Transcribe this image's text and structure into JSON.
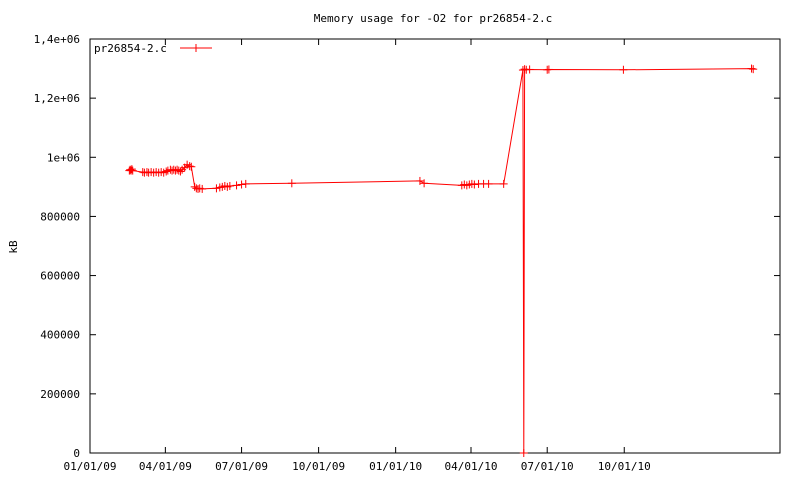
{
  "chart_data": {
    "type": "line",
    "title": "Memory usage for -O2 for pr26854-2.c",
    "xlabel": "",
    "ylabel": "kB",
    "ylim": [
      0,
      1400000
    ],
    "xlim": [
      "2009-01-01",
      "2011-04-05"
    ],
    "grid": false,
    "legend_position": "top-left",
    "series_color": "#ff0000",
    "x_ticks": [
      {
        "date": "2009-01-01",
        "label": "01/01/09"
      },
      {
        "date": "2009-04-01",
        "label": "04/01/09"
      },
      {
        "date": "2009-07-01",
        "label": "07/01/09"
      },
      {
        "date": "2009-10-01",
        "label": "10/01/09"
      },
      {
        "date": "2010-01-01",
        "label": "01/01/10"
      },
      {
        "date": "2010-04-01",
        "label": "04/01/10"
      },
      {
        "date": "2010-07-01",
        "label": "07/01/10"
      },
      {
        "date": "2010-10-01",
        "label": "10/01/10"
      }
    ],
    "y_ticks": [
      {
        "value": 0,
        "label": "0"
      },
      {
        "value": 200000,
        "label": "200000"
      },
      {
        "value": 400000,
        "label": "400000"
      },
      {
        "value": 600000,
        "label": "600000"
      },
      {
        "value": 800000,
        "label": "800000"
      },
      {
        "value": 1000000,
        "label": "1e+06"
      },
      {
        "value": 1200000,
        "label": "1,2e+06"
      },
      {
        "value": 1400000,
        "label": "1,4e+06"
      }
    ],
    "series": [
      {
        "name": "pr26854-2.c",
        "points": [
          [
            "2009-02-17",
            955000
          ],
          [
            "2009-02-18",
            958000
          ],
          [
            "2009-02-19",
            955000
          ],
          [
            "2009-02-20",
            960000
          ],
          [
            "2009-02-21",
            955000
          ],
          [
            "2009-03-05",
            950000
          ],
          [
            "2009-03-07",
            948000
          ],
          [
            "2009-03-10",
            950000
          ],
          [
            "2009-03-12",
            948000
          ],
          [
            "2009-03-15",
            950000
          ],
          [
            "2009-03-18",
            948000
          ],
          [
            "2009-03-21",
            950000
          ],
          [
            "2009-03-24",
            948000
          ],
          [
            "2009-03-27",
            950000
          ],
          [
            "2009-03-30",
            948000
          ],
          [
            "2009-04-02",
            952000
          ],
          [
            "2009-04-04",
            955000
          ],
          [
            "2009-04-07",
            958000
          ],
          [
            "2009-04-09",
            955000
          ],
          [
            "2009-04-11",
            958000
          ],
          [
            "2009-04-13",
            955000
          ],
          [
            "2009-04-15",
            958000
          ],
          [
            "2009-04-17",
            955000
          ],
          [
            "2009-04-19",
            952000
          ],
          [
            "2009-04-21",
            958000
          ],
          [
            "2009-04-24",
            965000
          ],
          [
            "2009-04-27",
            975000
          ],
          [
            "2009-04-30",
            970000
          ],
          [
            "2009-05-02",
            968000
          ],
          [
            "2009-05-06",
            900000
          ],
          [
            "2009-05-08",
            895000
          ],
          [
            "2009-05-10",
            893000
          ],
          [
            "2009-05-12",
            895000
          ],
          [
            "2009-05-15",
            893000
          ],
          [
            "2009-06-01",
            895000
          ],
          [
            "2009-06-05",
            898000
          ],
          [
            "2009-06-08",
            900000
          ],
          [
            "2009-06-11",
            903000
          ],
          [
            "2009-06-14",
            900000
          ],
          [
            "2009-06-17",
            903000
          ],
          [
            "2009-06-25",
            905000
          ],
          [
            "2009-07-01",
            908000
          ],
          [
            "2009-07-06",
            910000
          ],
          [
            "2009-08-30",
            912000
          ],
          [
            "2010-01-30",
            920000
          ],
          [
            "2010-02-04",
            912000
          ],
          [
            "2010-03-21",
            905000
          ],
          [
            "2010-03-24",
            908000
          ],
          [
            "2010-03-27",
            905000
          ],
          [
            "2010-03-30",
            908000
          ],
          [
            "2010-04-02",
            910000
          ],
          [
            "2010-04-05",
            908000
          ],
          [
            "2010-04-10",
            910000
          ],
          [
            "2010-04-16",
            910000
          ],
          [
            "2010-04-22",
            910000
          ],
          [
            "2010-05-10",
            910000
          ],
          [
            "2010-06-02",
            1295000
          ],
          [
            "2010-06-03",
            0
          ],
          [
            "2010-06-04",
            1298000
          ],
          [
            "2010-06-06",
            1296000
          ],
          [
            "2010-06-10",
            1297000
          ],
          [
            "2010-07-01",
            1296000
          ],
          [
            "2010-07-03",
            1297000
          ],
          [
            "2010-09-30",
            1296000
          ],
          [
            "2011-03-02",
            1300000
          ],
          [
            "2011-03-04",
            1298000
          ]
        ]
      }
    ]
  }
}
